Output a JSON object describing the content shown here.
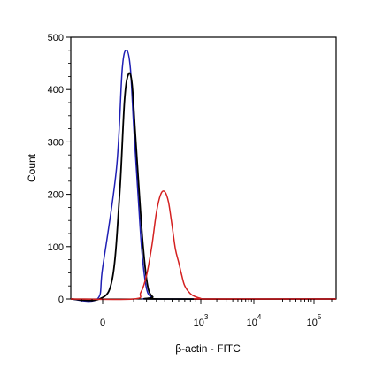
{
  "chart_data": {
    "type": "line",
    "title": "",
    "xlabel": "β-actin - FITC",
    "ylabel": "Count",
    "x_scale": "biexponential",
    "xlim": [
      -200,
      200000
    ],
    "ylim": [
      0,
      500
    ],
    "y_ticks": [
      "0",
      "100",
      "200",
      "300",
      "400",
      "500"
    ],
    "x_ticks": [
      {
        "value": 0,
        "label": "0",
        "exp": ""
      },
      {
        "value": 1000,
        "label": "10",
        "exp": "3"
      },
      {
        "value": 10000,
        "label": "10",
        "exp": "4"
      },
      {
        "value": 100000,
        "label": "10",
        "exp": "5"
      }
    ],
    "grid": false,
    "legend": "none",
    "series": [
      {
        "color": "#1f1fb4",
        "x": [
          -50,
          0,
          20,
          40,
          60,
          80,
          100,
          130,
          160,
          200,
          250,
          320
        ],
        "y": [
          0,
          60,
          250,
          440,
          475,
          440,
          330,
          200,
          90,
          20,
          3,
          0
        ]
      },
      {
        "color": "#000000",
        "x": [
          -30,
          10,
          30,
          50,
          70,
          90,
          110,
          140,
          170,
          210,
          260,
          330
        ],
        "y": [
          0,
          40,
          200,
          380,
          430,
          410,
          320,
          200,
          100,
          25,
          4,
          0
        ]
      },
      {
        "color": "#d42020",
        "x": [
          100,
          150,
          200,
          250,
          300,
          350,
          400,
          450,
          500,
          550,
          600,
          650,
          700,
          800,
          900,
          1000,
          1200
        ],
        "y": [
          0,
          12,
          45,
          100,
          165,
          200,
          205,
          185,
          140,
          95,
          70,
          45,
          25,
          10,
          4,
          1,
          0
        ]
      }
    ]
  }
}
